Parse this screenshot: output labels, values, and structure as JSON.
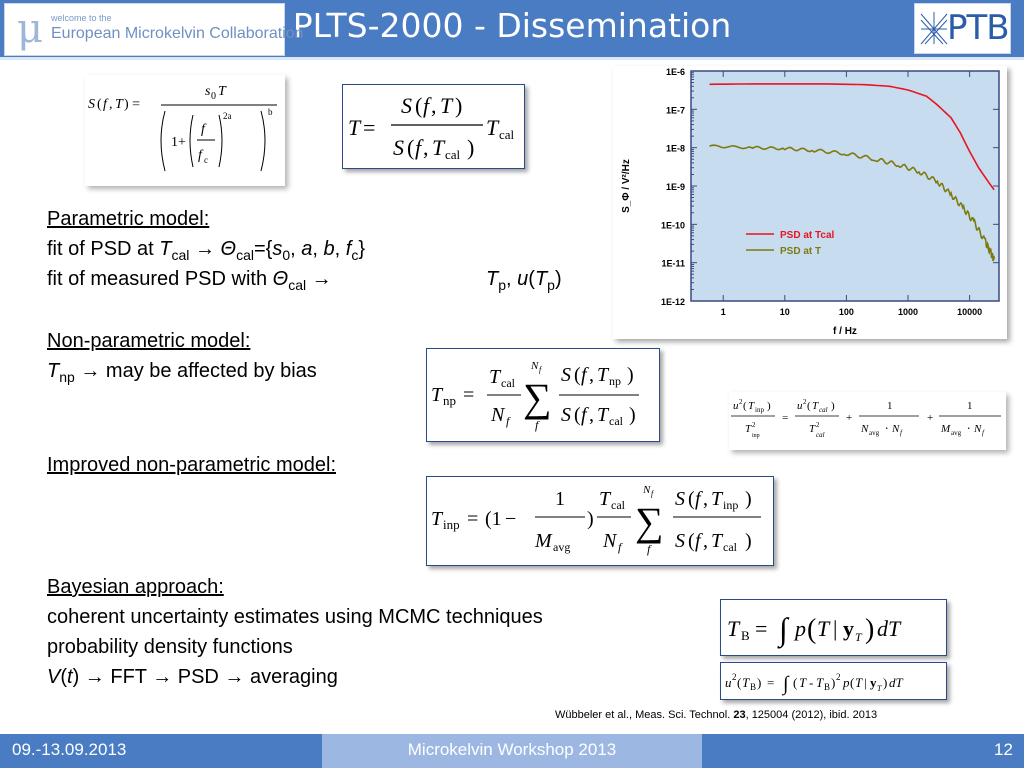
{
  "header": {
    "title": "PLTS-2000 - Dissemination",
    "logo_left": {
      "small": "welcome to the",
      "big": "European Microkelvin Collaboration"
    },
    "logo_right": "PTB"
  },
  "formulas": {
    "psd_model": "S(f,T) = s0 T / (1 + (f/fc)^2a)^b",
    "t_ratio": "T = S(f,T) / S(f,Tcal) · Tcal",
    "t_np": "Tnp = Tcal/Nf · Σ_f^Nf S(f,Tnp)/S(f,Tcal)",
    "u2_np": "u²(Tinp)/T²inp = u²(Tcal)/T²cal + 1/(Navg·Nf) + 1/(Mavg·Nf)",
    "t_inp": "Tinp = (1 − 1/Mavg) · Tcal/Nf · Σ_f^Nf S(f,Tinp)/S(f,Tcal)",
    "t_b": "TB = ∫ p(T | yT) dT",
    "u2_b": "u²(TB) = ∫ (T − TB)² p(T | yT) dT"
  },
  "sections": {
    "parametric": {
      "heading": "Parametric model:",
      "line1_a": "fit of PSD at ",
      "line1_b": " → ",
      "line1_c": "={",
      "line1_d": "}",
      "line2_a": "fit of measured PSD with ",
      "line2_b": " →",
      "line2_c": "),"
    },
    "nonparametric": {
      "heading": "Non-parametric model:",
      "line1": " → may be affected by bias"
    },
    "improved": {
      "heading": "Improved non-parametric model:"
    },
    "bayesian": {
      "heading": "Bayesian approach:",
      "line1": "coherent uncertainty estimates using MCMC techniques",
      "line2": "probability density functions",
      "line3": ") → FFT → PSD → averaging"
    }
  },
  "chart_data": {
    "type": "line",
    "xscale": "log",
    "yscale": "log",
    "xlim": [
      0.3,
      30000
    ],
    "ylim": [
      1e-12,
      1e-06
    ],
    "x_ticks": [
      "1",
      "10",
      "100",
      "1000",
      "10000"
    ],
    "y_ticks": [
      "1E-12",
      "1E-11",
      "1E-10",
      "1E-9",
      "1E-8",
      "1E-7",
      "1E-6"
    ],
    "xlabel": "f / Hz",
    "ylabel": "S_Φ / V²/Hz",
    "legend_position": "center-right",
    "series": [
      {
        "name": "PSD at Tcal",
        "color": "#e8141e",
        "points": [
          [
            0.6,
            4.5e-07
          ],
          [
            3,
            4.6e-07
          ],
          [
            10,
            4.6e-07
          ],
          [
            50,
            4.6e-07
          ],
          [
            200,
            4.4e-07
          ],
          [
            500,
            4e-07
          ],
          [
            1000,
            3.2e-07
          ],
          [
            2000,
            2.2e-07
          ],
          [
            3000,
            1.3e-07
          ],
          [
            5000,
            6e-08
          ],
          [
            7000,
            2.5e-08
          ],
          [
            10000,
            8e-09
          ],
          [
            14000,
            3e-09
          ],
          [
            20000,
            1.3e-09
          ],
          [
            25000,
            8e-10
          ]
        ]
      },
      {
        "name": "PSD at T",
        "color": "#7d7a10",
        "points": [
          [
            0.6,
            1.1e-08
          ],
          [
            3,
            1e-08
          ],
          [
            10,
            9.5e-09
          ],
          [
            30,
            8.5e-09
          ],
          [
            100,
            7e-09
          ],
          [
            300,
            5e-09
          ],
          [
            700,
            3.6e-09
          ],
          [
            1500,
            2.4e-09
          ],
          [
            3000,
            1.3e-09
          ],
          [
            5000,
            6e-10
          ],
          [
            8000,
            2.6e-10
          ],
          [
            12000,
            1.1e-10
          ],
          [
            18000,
            3.5e-11
          ],
          [
            22000,
            1.8e-11
          ],
          [
            25000,
            1.2e-11
          ]
        ]
      }
    ]
  },
  "footer": {
    "date": "09.-13.09.2013",
    "event": "Microkelvin Workshop 2013",
    "page": "12",
    "reference_a": "Wübbeler et al., Meas. Sci. Technol. ",
    "reference_vol": "23",
    "reference_b": ", 125004 (2012),  ibid. 2013"
  }
}
